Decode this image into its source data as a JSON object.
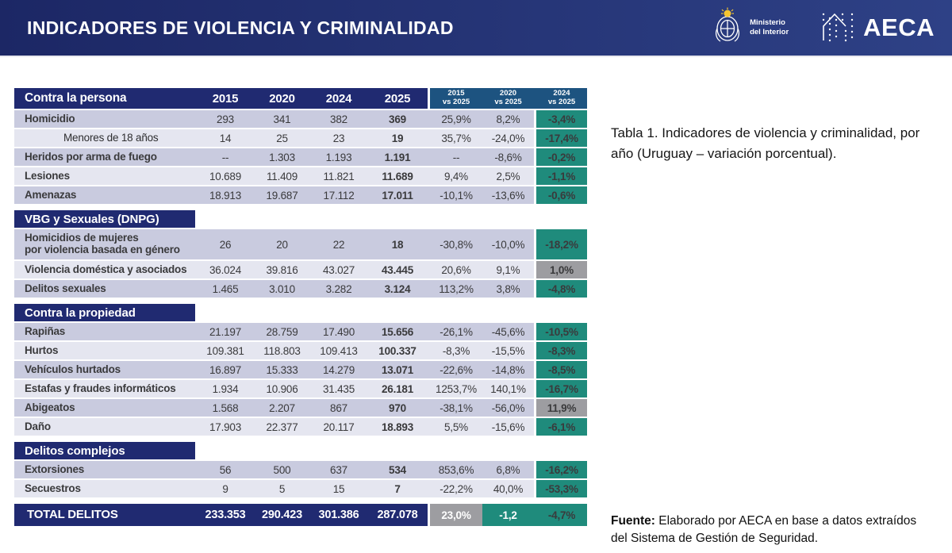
{
  "banner": {
    "title": "INDICADORES DE VIOLENCIA Y CRIMINALIDAD",
    "ministry": {
      "line1": "Ministerio",
      "line2": "del Interior"
    },
    "aeca": "AECA"
  },
  "caption": "Tabla 1. Indicadores de violencia y criminalidad, por año (Uruguay – variación porcentual).",
  "source": {
    "label": "Fuente:",
    "text": " Elaborado por AECA en base a datos extraídos del Sistema de Gestión de Seguridad."
  },
  "colors": {
    "navy": "#202a71",
    "steel": "#1d5380",
    "teal": "#1f8b7c",
    "gray": "#9d9da1",
    "stripe_dark": "#c9cbdf",
    "stripe_light": "#e5e6f0"
  },
  "chart_data": {
    "type": "table",
    "title": "Indicadores de violencia y criminalidad, por año (Uruguay)",
    "years": [
      "2015",
      "2020",
      "2024",
      "2025"
    ],
    "comparisons": [
      {
        "top": "2015",
        "bottom": "vs 2025"
      },
      {
        "top": "2020",
        "bottom": "vs 2025"
      },
      {
        "top": "2024",
        "bottom": "vs 2025"
      }
    ],
    "sections": [
      {
        "id": "contra-la-persona",
        "title": "Contra la persona",
        "in_header": true,
        "rows": [
          {
            "label": "Homicidio",
            "values": [
              "293",
              "341",
              "382",
              "369"
            ],
            "comp": [
              "25,9%",
              "8,2%"
            ],
            "last": "-3,4%",
            "last_style": "teal"
          },
          {
            "label": "Menores de 18 años",
            "indent": true,
            "values": [
              "14",
              "25",
              "23",
              "19"
            ],
            "comp": [
              "35,7%",
              "-24,0%"
            ],
            "last": "-17,4%",
            "last_style": "teal"
          },
          {
            "label": "Heridos por arma de fuego",
            "values": [
              "--",
              "1.303",
              "1.193",
              "1.191"
            ],
            "comp": [
              "--",
              "-8,6%"
            ],
            "last": "-0,2%",
            "last_style": "teal"
          },
          {
            "label": "Lesiones",
            "values": [
              "10.689",
              "11.409",
              "11.821",
              "11.689"
            ],
            "comp": [
              "9,4%",
              "2,5%"
            ],
            "last": "-1,1%",
            "last_style": "teal"
          },
          {
            "label": "Amenazas",
            "values": [
              "18.913",
              "19.687",
              "17.112",
              "17.011"
            ],
            "comp": [
              "-10,1%",
              "-13,6%"
            ],
            "last": "-0,6%",
            "last_style": "teal"
          }
        ]
      },
      {
        "id": "vbg-y-sexuales",
        "title": "VBG y Sexuales (DNPG)",
        "rows": [
          {
            "label": "Homicidios de mujeres",
            "label2": "por violencia basada en género",
            "tall": true,
            "values": [
              "26",
              "20",
              "22",
              "18"
            ],
            "comp": [
              "-30,8%",
              "-10,0%"
            ],
            "last": "-18,2%",
            "last_style": "teal"
          },
          {
            "label": "Violencia doméstica y asociados",
            "values": [
              "36.024",
              "39.816",
              "43.027",
              "43.445"
            ],
            "comp": [
              "20,6%",
              "9,1%"
            ],
            "last": "1,0%",
            "last_style": "gray"
          },
          {
            "label": "Delitos sexuales",
            "values": [
              "1.465",
              "3.010",
              "3.282",
              "3.124"
            ],
            "comp": [
              "113,2%",
              "3,8%"
            ],
            "last": "-4,8%",
            "last_style": "teal"
          }
        ]
      },
      {
        "id": "contra-la-propiedad",
        "title": "Contra la propiedad",
        "rows": [
          {
            "label": "Rapiñas",
            "values": [
              "21.197",
              "28.759",
              "17.490",
              "15.656"
            ],
            "comp": [
              "-26,1%",
              "-45,6%"
            ],
            "last": "-10,5%",
            "last_style": "teal"
          },
          {
            "label": "Hurtos",
            "values": [
              "109.381",
              "118.803",
              "109.413",
              "100.337"
            ],
            "comp": [
              "-8,3%",
              "-15,5%"
            ],
            "last": "-8,3%",
            "last_style": "teal"
          },
          {
            "label": "Vehículos hurtados",
            "values": [
              "16.897",
              "15.333",
              "14.279",
              "13.071"
            ],
            "comp": [
              "-22,6%",
              "-14,8%"
            ],
            "last": "-8,5%",
            "last_style": "teal"
          },
          {
            "label": "Estafas y fraudes informáticos",
            "values": [
              "1.934",
              "10.906",
              "31.435",
              "26.181"
            ],
            "comp": [
              "1253,7%",
              "140,1%"
            ],
            "last": "-16,7%",
            "last_style": "teal"
          },
          {
            "label": "Abigeatos",
            "values": [
              "1.568",
              "2.207",
              "867",
              "970"
            ],
            "comp": [
              "-38,1%",
              "-56,0%"
            ],
            "last": "11,9%",
            "last_style": "gray"
          },
          {
            "label": "Daño",
            "values": [
              "17.903",
              "22.377",
              "20.117",
              "18.893"
            ],
            "comp": [
              "5,5%",
              "-15,6%"
            ],
            "last": "-6,1%",
            "last_style": "teal"
          }
        ]
      },
      {
        "id": "delitos-complejos",
        "title": "Delitos complejos",
        "rows": [
          {
            "label": "Extorsiones",
            "values": [
              "56",
              "500",
              "637",
              "534"
            ],
            "comp": [
              "853,6%",
              "6,8%"
            ],
            "last": "-16,2%",
            "last_style": "teal"
          },
          {
            "label": "Secuestros",
            "values": [
              "9",
              "5",
              "15",
              "7"
            ],
            "comp": [
              "-22,2%",
              "40,0%"
            ],
            "last": "-53,3%",
            "last_style": "teal"
          }
        ]
      }
    ],
    "total": {
      "label": "TOTAL DELITOS",
      "values": [
        "233.353",
        "290.423",
        "301.386",
        "287.078"
      ],
      "comp": [
        "23,0%",
        "-1,2"
      ],
      "comp_styles": [
        "gray",
        "teal"
      ],
      "last": "-4,7%",
      "last_style": "teal"
    }
  }
}
